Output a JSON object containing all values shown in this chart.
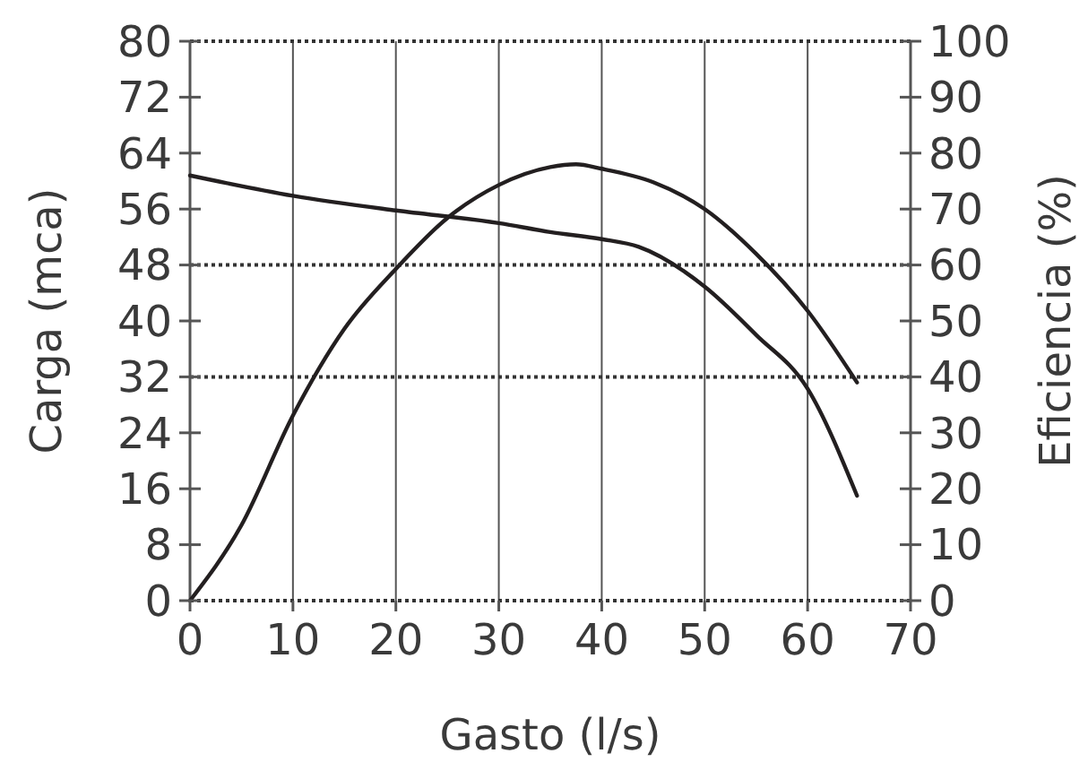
{
  "chart_data": {
    "type": "line",
    "xlabel": "Gasto (l/s)",
    "ylabel": "Carga (mca)",
    "y2label": "Eficiencia (%)",
    "xlim": [
      0,
      70
    ],
    "xticks": [
      0,
      10,
      20,
      30,
      40,
      50,
      60,
      70
    ],
    "ylim": [
      0,
      80
    ],
    "yticks": [
      0,
      8,
      16,
      24,
      32,
      40,
      48,
      56,
      64,
      72,
      80
    ],
    "y2lim": [
      0,
      100
    ],
    "y2ticks": [
      0,
      10,
      20,
      30,
      40,
      50,
      60,
      70,
      80,
      90,
      100
    ],
    "grid": "x",
    "marker": "none",
    "line_style": "solid",
    "ref_lines": [
      {
        "axis": "y",
        "value": 48,
        "line_style": "dotted"
      },
      {
        "axis": "y",
        "value": 32,
        "line_style": "dotted"
      }
    ],
    "series": [
      {
        "color": "#231f20",
        "x": [
          0,
          10,
          20,
          30,
          35,
          40,
          43.6,
          50,
          55,
          60,
          64.8
        ],
        "values": [
          60.8,
          57.9,
          55.8,
          54.0,
          52.7,
          51.7,
          50.6,
          44.9,
          38.0,
          30.3,
          15.0
        ]
      },
      {
        "color": "#231f20",
        "axis": "y2",
        "x": [
          0,
          5,
          10,
          15,
          20,
          25,
          30,
          35,
          37.5,
          40,
          45,
          50,
          55,
          60,
          64.8
        ],
        "values": [
          0,
          13.5,
          33.1,
          48.6,
          59.3,
          68.4,
          74.3,
          77.5,
          78.0,
          77.2,
          74.8,
          70.0,
          62.0,
          51.8,
          39.0
        ]
      }
    ]
  }
}
